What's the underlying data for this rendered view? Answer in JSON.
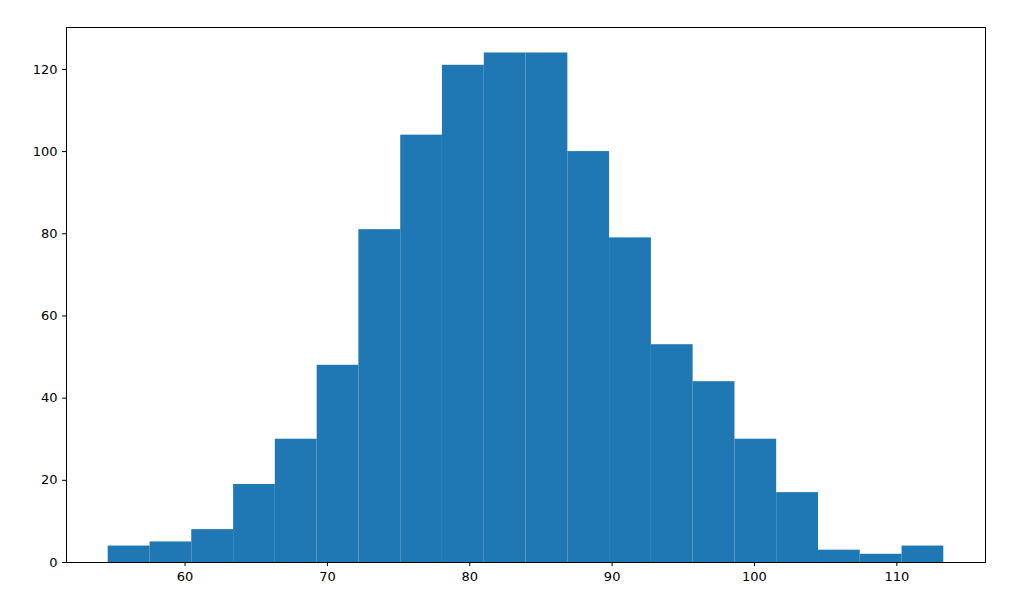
{
  "chart_data": {
    "type": "histogram",
    "bins": [
      54.6,
      57.54,
      60.47,
      63.41,
      66.34,
      69.28,
      72.21,
      75.15,
      78.08,
      81.02,
      83.95,
      86.89,
      89.82,
      92.76,
      95.69,
      98.63,
      101.56,
      104.5,
      107.43,
      110.37,
      113.3
    ],
    "values": [
      4,
      5,
      8,
      19,
      30,
      48,
      81,
      104,
      121,
      124,
      124,
      100,
      79,
      53,
      44,
      30,
      17,
      3,
      2,
      4
    ],
    "color": "#1f77b4",
    "xlim": [
      51.67,
      116.23
    ],
    "xticks": [
      60,
      70,
      80,
      90,
      100,
      110
    ],
    "ylim": [
      0,
      130.2
    ],
    "yticks": [
      0,
      20,
      40,
      60,
      80,
      100,
      120
    ],
    "grid": false
  }
}
